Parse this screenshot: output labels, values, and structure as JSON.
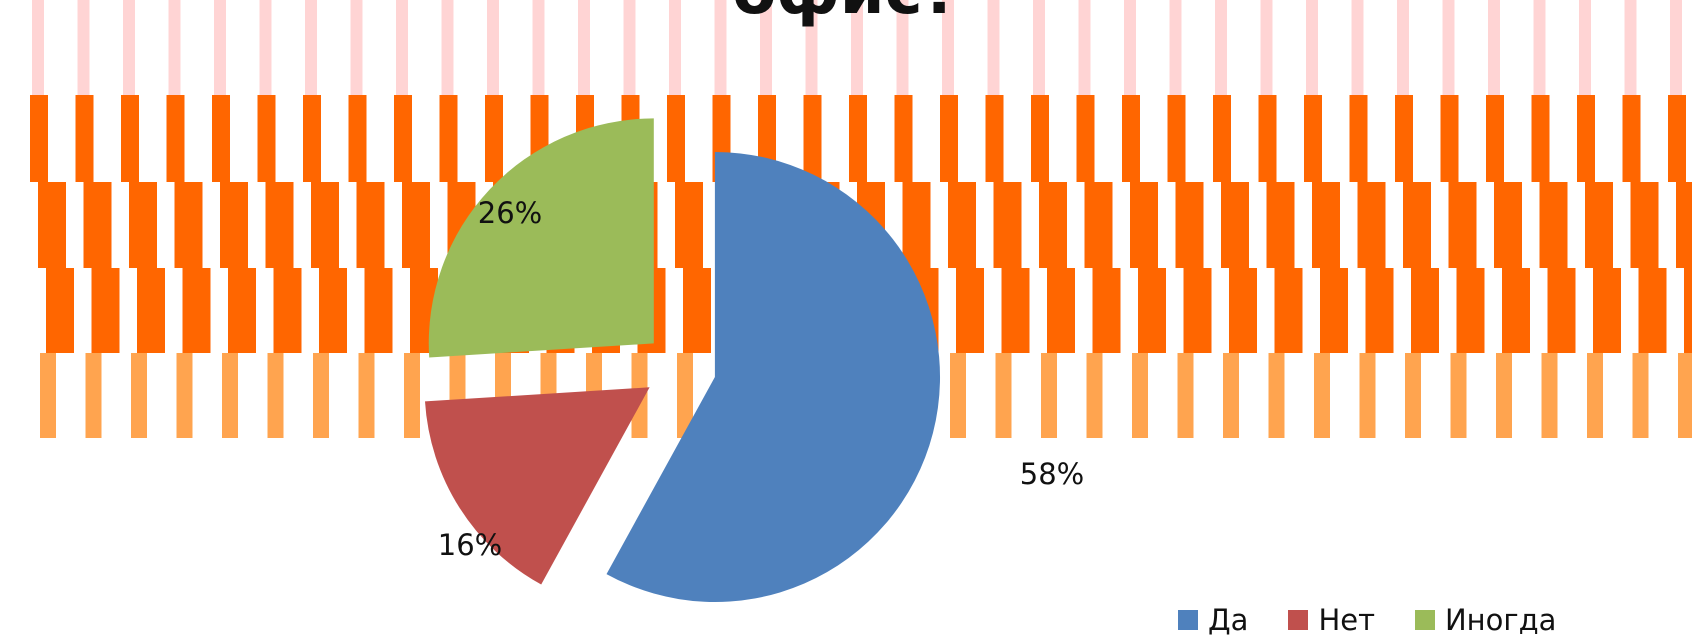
{
  "chart_data": {
    "type": "pie",
    "title": "офис?",
    "slices": [
      {
        "label": "Да",
        "value": 58,
        "display": "58%",
        "color": "#4f81bd"
      },
      {
        "label": "Нет",
        "value": 16,
        "display": "16%",
        "color": "#c0504d"
      },
      {
        "label": "Иногда",
        "value": 26,
        "display": "26%",
        "color": "#9bbb59"
      }
    ],
    "legend_position": "bottom-right",
    "background": {
      "stripe_colors": [
        "#ff6600",
        "#ff9a3c",
        "#ffcccc"
      ]
    }
  }
}
